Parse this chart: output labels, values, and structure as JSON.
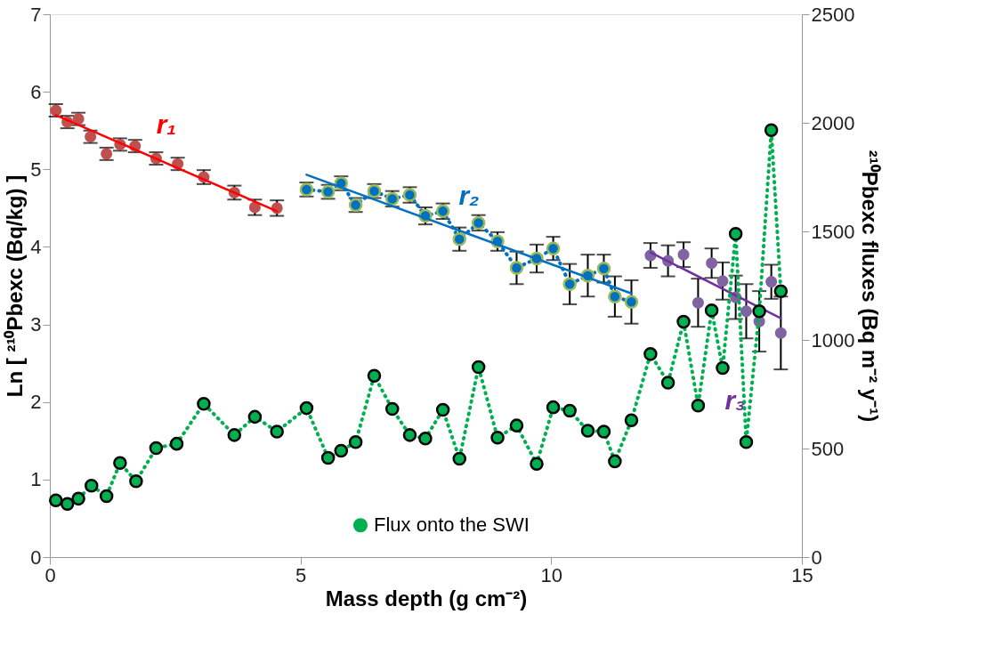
{
  "chart_data": {
    "type": "scatter",
    "xlabel": "Mass depth (g cm⁻²)",
    "ylabel": "Ln [ ²¹⁰Pbexc (Bq/kg) ]",
    "y2label": "²¹⁰Pbexc fluxes (Bq m⁻² y⁻¹)",
    "xlim": [
      0,
      15
    ],
    "xticks": [
      0,
      5,
      10,
      15
    ],
    "ylim": [
      0,
      7
    ],
    "yticks": [
      0,
      1,
      2,
      3,
      4,
      5,
      6,
      7
    ],
    "y2lim": [
      0,
      2500
    ],
    "y2ticks": [
      0,
      500,
      1000,
      1500,
      2000,
      2500
    ],
    "grid": false,
    "legend": "bottom",
    "series": [
      {
        "color": "#c0504d",
        "marker": "circle",
        "x": [
          0.12,
          0.35,
          0.57,
          0.81,
          1.13,
          1.4,
          1.7,
          2.12,
          2.55,
          3.07,
          3.68,
          4.09,
          4.53
        ],
        "values": [
          5.76,
          5.61,
          5.65,
          5.42,
          5.2,
          5.32,
          5.3,
          5.14,
          5.07,
          4.9,
          4.7,
          4.51,
          4.5
        ],
        "errors": [
          0.08,
          0.08,
          0.08,
          0.08,
          0.08,
          0.08,
          0.08,
          0.08,
          0.08,
          0.09,
          0.09,
          0.1,
          0.1
        ]
      },
      {
        "type": "line",
        "name": "r₁",
        "color": "#ff0000",
        "marker": "none",
        "line_style": "solid",
        "x": [
          0.12,
          4.53
        ],
        "values": [
          5.7,
          4.46
        ]
      },
      {
        "type": "line",
        "color": "#0070c0",
        "marker": "circle",
        "line_style": "dotted",
        "x": [
          5.12,
          5.55,
          5.81,
          6.1,
          6.47,
          6.83,
          7.18,
          7.49,
          7.84,
          8.17,
          8.55,
          8.93,
          9.31,
          9.71,
          10.04,
          10.37,
          10.73,
          11.05,
          11.27,
          11.6
        ],
        "values": [
          4.74,
          4.71,
          4.82,
          4.54,
          4.72,
          4.62,
          4.67,
          4.4,
          4.46,
          4.1,
          4.31,
          4.07,
          3.73,
          3.85,
          3.98,
          3.52,
          3.63,
          3.72,
          3.36,
          3.29
        ],
        "errors": [
          0.09,
          0.09,
          0.09,
          0.09,
          0.09,
          0.1,
          0.1,
          0.11,
          0.1,
          0.15,
          0.1,
          0.12,
          0.21,
          0.18,
          0.15,
          0.26,
          0.27,
          0.18,
          0.26,
          0.28
        ]
      },
      {
        "type": "line",
        "name": "r₂",
        "color": "#0070c0",
        "marker": "none",
        "line_style": "solid",
        "x": [
          5.12,
          11.6
        ],
        "values": [
          4.93,
          3.4
        ]
      },
      {
        "color": "#8064a2",
        "marker": "circle",
        "x": [
          11.98,
          12.33,
          12.64,
          12.93,
          13.2,
          13.42,
          13.68,
          13.89,
          14.15,
          14.39,
          14.58
        ],
        "values": [
          3.89,
          3.82,
          3.9,
          3.28,
          3.79,
          3.56,
          3.35,
          3.17,
          3.04,
          3.55,
          2.89
        ],
        "errors": [
          0.16,
          0.2,
          0.16,
          0.31,
          0.19,
          0.24,
          0.28,
          0.35,
          0.39,
          0.22,
          0.47
        ]
      },
      {
        "type": "line",
        "name": "r₃",
        "color": "#7030a0",
        "marker": "none",
        "line_style": "solid",
        "x": [
          11.98,
          14.58
        ],
        "values": [
          3.93,
          3.08
        ]
      },
      {
        "type": "line",
        "name": "Flux onto the SWI",
        "color": "#00b050",
        "axis": "y2",
        "marker": "circle",
        "line_style": "dotted",
        "x": [
          0.12,
          0.35,
          0.57,
          0.83,
          1.13,
          1.4,
          1.72,
          2.12,
          2.53,
          3.07,
          3.68,
          4.09,
          4.53,
          5.12,
          5.55,
          5.81,
          6.1,
          6.47,
          6.83,
          7.18,
          7.49,
          7.84,
          8.17,
          8.55,
          8.93,
          9.31,
          9.71,
          10.04,
          10.37,
          10.73,
          11.05,
          11.27,
          11.6,
          11.98,
          12.33,
          12.64,
          12.93,
          13.2,
          13.42,
          13.68,
          13.89,
          14.15,
          14.39,
          14.58
        ],
        "values": [
          261,
          245,
          269,
          329,
          281,
          433,
          349,
          502,
          522,
          706,
          562,
          646,
          578,
          686,
          457,
          490,
          530,
          835,
          682,
          562,
          546,
          678,
          453,
          875,
          550,
          606,
          429,
          690,
          674,
          582,
          578,
          441,
          630,
          935,
          803,
          1084,
          698,
          1136,
          871,
          1489,
          530,
          1132,
          1966,
          1224
        ]
      }
    ]
  }
}
